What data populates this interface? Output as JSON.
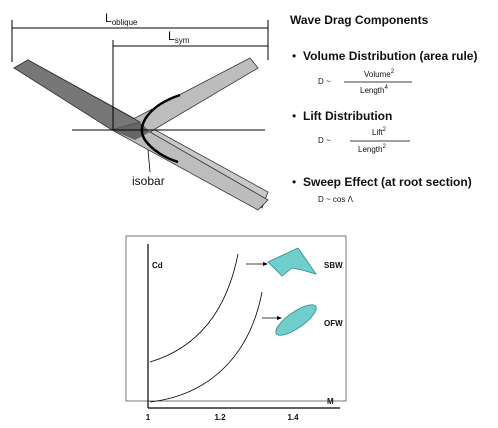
{
  "wing": {
    "l_oblique": {
      "main": "L",
      "sub": "oblique"
    },
    "l_sym": {
      "main": "L",
      "sub": "sym"
    },
    "isobar": "isobar"
  },
  "components": {
    "title": "Wave Drag Components",
    "items": [
      {
        "bullet": "•",
        "label": "Volume Distribution (area rule)",
        "lhs": "D ~",
        "num": "Volume",
        "num_exp": "2",
        "den": "Length",
        "den_exp": "4"
      },
      {
        "bullet": "•",
        "label": "Lift Distribution",
        "lhs": "D ~",
        "num": "Lift",
        "num_exp": "2",
        "den": "Length",
        "den_exp": "2"
      },
      {
        "bullet": "•",
        "label": "Sweep Effect (at root section)",
        "formula": "D ~ cos Λ"
      }
    ]
  },
  "graph": {
    "y_label": "Cd",
    "x_label": "M",
    "x_ticks": [
      "1",
      "1.2",
      "1.4"
    ],
    "sbw": "SBW",
    "ofw": "OFW"
  }
}
